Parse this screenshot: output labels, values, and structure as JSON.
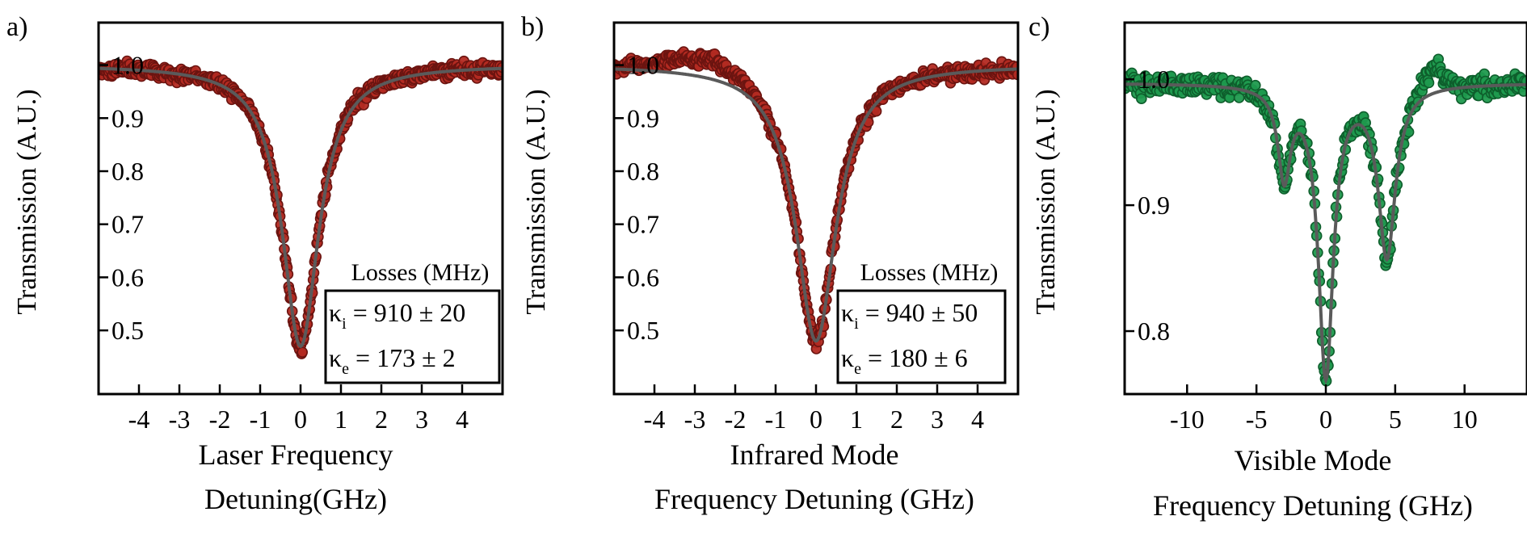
{
  "chart_data": [
    {
      "panel_label": "a)",
      "type": "scatter",
      "ylabel": "Transmission (A.U.)",
      "xlabel": [
        "Laser Frequency",
        "Detuning(GHz)"
      ],
      "xlim": [
        -5.0,
        5.0
      ],
      "ylim": [
        0.38,
        1.08
      ],
      "xticks": [
        -4,
        -3,
        -2,
        -1,
        0,
        1,
        2,
        3,
        4
      ],
      "xtick_labels": [
        "-4",
        "-3",
        "-2",
        "-1",
        "0",
        "1",
        "2",
        "3",
        "4"
      ],
      "yticks": [
        0.5,
        0.6,
        0.7,
        0.8,
        0.9,
        1.0
      ],
      "ytick_labels": [
        "0.5",
        "0.6",
        "0.7",
        "0.8",
        "0.9",
        "1.0"
      ],
      "marker_color": "#b32a22",
      "marker_edge": "#6b1410",
      "fit_color": "#5a5a5a",
      "fit_model": "lorentzian",
      "dips": [
        {
          "center": 0.0,
          "hwhm": 0.55,
          "depth": 0.53
        }
      ],
      "baseline": 1.0,
      "annotation": {
        "title": "Losses (MHz)",
        "line1": {
          "symbol": "κ",
          "sub": "i",
          "text": " = 910 ± 20"
        },
        "line2": {
          "symbol": "κ",
          "sub": "e",
          "text": " = 173 ± 2"
        }
      }
    },
    {
      "panel_label": "b)",
      "type": "scatter",
      "ylabel": "Transmission (A.U.)",
      "xlabel": [
        "Infrared Mode",
        "Frequency Detuning (GHz)"
      ],
      "xlim": [
        -5.0,
        5.0
      ],
      "ylim": [
        0.38,
        1.08
      ],
      "xticks": [
        -4,
        -3,
        -2,
        -1,
        0,
        1,
        2,
        3,
        4
      ],
      "xtick_labels": [
        "-4",
        "-3",
        "-2",
        "-1",
        "0",
        "1",
        "2",
        "3",
        "4"
      ],
      "yticks": [
        0.5,
        0.6,
        0.7,
        0.8,
        0.9,
        1.0
      ],
      "ytick_labels": [
        "0.5",
        "0.6",
        "0.7",
        "0.8",
        "0.9",
        "1.0"
      ],
      "marker_color": "#b32a22",
      "marker_edge": "#6b1410",
      "fit_color": "#5a5a5a",
      "fit_model": "lorentzian",
      "dips": [
        {
          "center": 0.0,
          "hwhm": 0.6,
          "depth": 0.52
        }
      ],
      "baseline": 1.0,
      "annotation": {
        "title": "Losses (MHz)",
        "line1": {
          "symbol": "κ",
          "sub": "i",
          "text": " = 940 ± 50"
        },
        "line2": {
          "symbol": "κ",
          "sub": "e",
          "text": " = 180 ± 6"
        }
      }
    },
    {
      "panel_label": "c)",
      "type": "scatter",
      "ylabel": "Transmission (A.U.)",
      "xlabel": [
        "Visible Mode",
        "Frequency Detuning (GHz)"
      ],
      "xlim": [
        -14.5,
        14.5
      ],
      "ylim": [
        0.75,
        1.045
      ],
      "xticks": [
        -10,
        -5,
        0,
        5,
        10
      ],
      "xtick_labels": [
        "-10",
        "-5",
        "0",
        "5",
        "10"
      ],
      "yticks": [
        0.8,
        0.9,
        1.0
      ],
      "ytick_labels": [
        "0.8",
        "0.9",
        "1.0"
      ],
      "marker_color": "#1f9a4e",
      "marker_edge": "#0e5e2c",
      "fit_color": "#5a5a5a",
      "fit_model": "lorentzian",
      "dips": [
        {
          "center": -3.0,
          "hwhm": 0.55,
          "depth": 0.07
        },
        {
          "center": 0.0,
          "hwhm": 0.65,
          "depth": 0.23
        },
        {
          "center": 4.4,
          "hwhm": 0.75,
          "depth": 0.135
        }
      ],
      "baseline": 0.997
    }
  ]
}
